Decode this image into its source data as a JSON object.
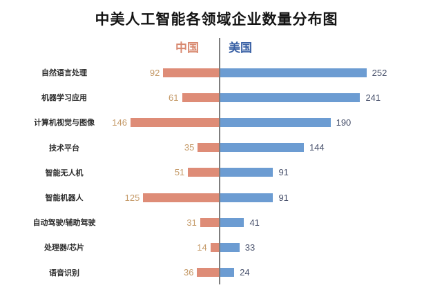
{
  "title": "中美人工智能各领域企业数量分布图",
  "legend": {
    "left": "中国",
    "right": "美国"
  },
  "colors": {
    "china_bar": "#DE8C77",
    "us_bar": "#6C9CD2",
    "china_header": "#D8886F",
    "us_header": "#3A61A5",
    "china_value": "#C59A68",
    "us_value": "#47506B",
    "divider": "#7D7D7D"
  },
  "chart_data": {
    "type": "bar",
    "orientation": "bidirectional-horizontal",
    "title": "中美人工智能各领域企业数量分布图",
    "categories": [
      "自然语言处理",
      "机器学习应用",
      "计算机视觉与图像",
      "技术平台",
      "智能无人机",
      "智能机器人",
      "自动驾驶/辅助驾驶",
      "处理器/芯片",
      "语音识别"
    ],
    "series": [
      {
        "name": "中国",
        "values": [
          92,
          61,
          146,
          35,
          51,
          125,
          31,
          14,
          36
        ]
      },
      {
        "name": "美国",
        "values": [
          252,
          241,
          190,
          144,
          91,
          91,
          41,
          33,
          24
        ]
      }
    ],
    "value_labels": "shown at bar ends",
    "grid": false,
    "legend_position": "top-center-split"
  }
}
